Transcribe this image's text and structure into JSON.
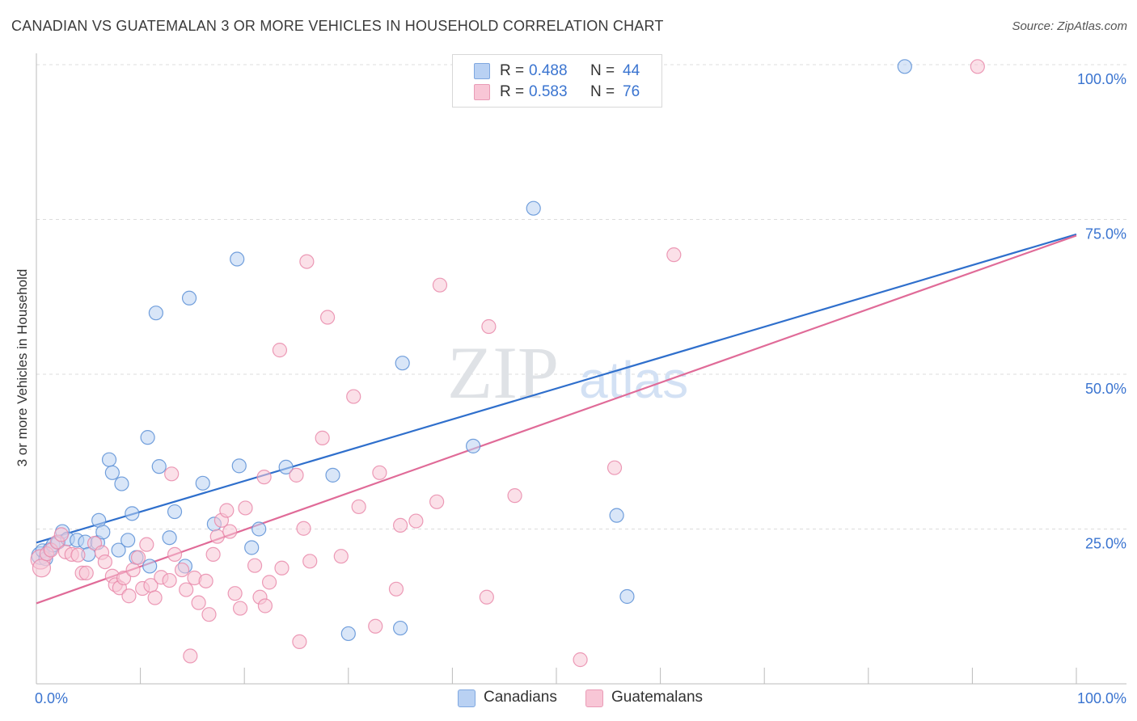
{
  "title": "CANADIAN VS GUATEMALAN 3 OR MORE VEHICLES IN HOUSEHOLD CORRELATION CHART",
  "source": "Source: ZipAtlas.com",
  "watermark": {
    "zip": "ZIP",
    "atlas": "atlas"
  },
  "legend": {
    "rows": [
      {
        "r_label": "R =",
        "r_value": "0.488",
        "n_label": "N =",
        "n_value": "44"
      },
      {
        "r_label": "R =",
        "r_value": "0.583",
        "n_label": "N =",
        "n_value": "76"
      }
    ]
  },
  "bottom_legend": {
    "canadians": "Canadians",
    "guatemalans": "Guatemalans"
  },
  "chart_data": {
    "type": "scatter",
    "title": "CANADIAN VS GUATEMALAN 3 OR MORE VEHICLES IN HOUSEHOLD CORRELATION CHART",
    "xlabel": "",
    "ylabel": "3 or more Vehicles in Household",
    "xlim": [
      0,
      100
    ],
    "ylim": [
      0,
      105
    ],
    "x_tick_labels": [
      "0.0%",
      "100.0%"
    ],
    "y_ticks": [
      25,
      50,
      75,
      100
    ],
    "y_tick_labels": [
      "25.0%",
      "50.0%",
      "75.0%",
      "100.0%"
    ],
    "grid": true,
    "legend_position": "top-center",
    "series": [
      {
        "name": "Canadians",
        "color": "#5b8fd6",
        "fill": "#b9d1f3",
        "line_color": "#2f6fcc",
        "R": 0.488,
        "N": 44,
        "trend": {
          "x": [
            0,
            100
          ],
          "y": [
            22.8,
            72.6
          ]
        },
        "points": [
          {
            "x": 0.4,
            "y": 20.7,
            "s": 11
          },
          {
            "x": 0.6,
            "y": 21.5
          },
          {
            "x": 0.9,
            "y": 20.2
          },
          {
            "x": 1.3,
            "y": 21.7
          },
          {
            "x": 1.6,
            "y": 22.4
          },
          {
            "x": 2.1,
            "y": 22.9
          },
          {
            "x": 2.5,
            "y": 24.6
          },
          {
            "x": 3.0,
            "y": 23.4
          },
          {
            "x": 3.9,
            "y": 23.2
          },
          {
            "x": 4.7,
            "y": 22.9
          },
          {
            "x": 5.0,
            "y": 20.9
          },
          {
            "x": 5.9,
            "y": 22.8
          },
          {
            "x": 6.0,
            "y": 26.4
          },
          {
            "x": 6.4,
            "y": 24.5
          },
          {
            "x": 7.0,
            "y": 36.2
          },
          {
            "x": 7.3,
            "y": 34.1
          },
          {
            "x": 7.9,
            "y": 21.6
          },
          {
            "x": 8.2,
            "y": 32.3
          },
          {
            "x": 8.8,
            "y": 23.2
          },
          {
            "x": 9.2,
            "y": 27.5
          },
          {
            "x": 9.6,
            "y": 20.4
          },
          {
            "x": 10.7,
            "y": 39.8
          },
          {
            "x": 10.9,
            "y": 19.0
          },
          {
            "x": 11.5,
            "y": 59.9
          },
          {
            "x": 11.8,
            "y": 35.1
          },
          {
            "x": 12.8,
            "y": 23.6
          },
          {
            "x": 13.3,
            "y": 27.8
          },
          {
            "x": 14.3,
            "y": 19.0
          },
          {
            "x": 14.7,
            "y": 62.3
          },
          {
            "x": 16.0,
            "y": 32.4
          },
          {
            "x": 17.1,
            "y": 25.8
          },
          {
            "x": 19.3,
            "y": 68.6
          },
          {
            "x": 19.5,
            "y": 35.2
          },
          {
            "x": 20.7,
            "y": 22.0
          },
          {
            "x": 21.4,
            "y": 25.0
          },
          {
            "x": 24.0,
            "y": 35.0
          },
          {
            "x": 28.5,
            "y": 33.7
          },
          {
            "x": 30.0,
            "y": 8.1
          },
          {
            "x": 35.0,
            "y": 9.0
          },
          {
            "x": 35.2,
            "y": 51.8
          },
          {
            "x": 42.0,
            "y": 38.4
          },
          {
            "x": 47.8,
            "y": 76.8
          },
          {
            "x": 55.8,
            "y": 27.2
          },
          {
            "x": 56.8,
            "y": 14.1
          },
          {
            "x": 83.5,
            "y": 99.7
          }
        ]
      },
      {
        "name": "Guatemalans",
        "color": "#e98aaa",
        "fill": "#f8c6d6",
        "line_color": "#e06b98",
        "R": 0.583,
        "N": 76,
        "trend": {
          "x": [
            0,
            100
          ],
          "y": [
            13.0,
            72.4
          ]
        },
        "points": [
          {
            "x": 0.4,
            "y": 20.1,
            "s": 12
          },
          {
            "x": 0.5,
            "y": 18.7,
            "s": 11
          },
          {
            "x": 1.0,
            "y": 21.0
          },
          {
            "x": 1.4,
            "y": 21.6
          },
          {
            "x": 2.0,
            "y": 22.9
          },
          {
            "x": 2.4,
            "y": 24.1
          },
          {
            "x": 2.8,
            "y": 21.3
          },
          {
            "x": 3.4,
            "y": 20.9
          },
          {
            "x": 4.0,
            "y": 20.8
          },
          {
            "x": 4.4,
            "y": 17.9
          },
          {
            "x": 4.8,
            "y": 17.9
          },
          {
            "x": 5.6,
            "y": 22.7
          },
          {
            "x": 6.3,
            "y": 21.2
          },
          {
            "x": 6.6,
            "y": 19.7
          },
          {
            "x": 7.3,
            "y": 17.4
          },
          {
            "x": 7.6,
            "y": 16.0
          },
          {
            "x": 8.0,
            "y": 15.5
          },
          {
            "x": 8.4,
            "y": 17.1
          },
          {
            "x": 8.9,
            "y": 14.2
          },
          {
            "x": 9.3,
            "y": 18.4
          },
          {
            "x": 9.8,
            "y": 20.4
          },
          {
            "x": 10.2,
            "y": 15.4
          },
          {
            "x": 10.6,
            "y": 22.5
          },
          {
            "x": 11.0,
            "y": 15.9
          },
          {
            "x": 11.4,
            "y": 13.9
          },
          {
            "x": 12.0,
            "y": 17.2
          },
          {
            "x": 12.8,
            "y": 16.7
          },
          {
            "x": 13.0,
            "y": 33.9
          },
          {
            "x": 13.3,
            "y": 20.9
          },
          {
            "x": 14.0,
            "y": 18.4
          },
          {
            "x": 14.4,
            "y": 15.2
          },
          {
            "x": 14.8,
            "y": 4.5
          },
          {
            "x": 15.2,
            "y": 17.1
          },
          {
            "x": 15.6,
            "y": 13.1
          },
          {
            "x": 16.3,
            "y": 16.6
          },
          {
            "x": 16.6,
            "y": 11.2
          },
          {
            "x": 17.0,
            "y": 20.9
          },
          {
            "x": 17.4,
            "y": 23.8
          },
          {
            "x": 17.8,
            "y": 26.4
          },
          {
            "x": 18.3,
            "y": 28.0
          },
          {
            "x": 18.6,
            "y": 24.6
          },
          {
            "x": 19.1,
            "y": 14.6
          },
          {
            "x": 19.6,
            "y": 12.2
          },
          {
            "x": 20.1,
            "y": 28.4
          },
          {
            "x": 21.0,
            "y": 19.1
          },
          {
            "x": 21.5,
            "y": 14.0
          },
          {
            "x": 21.9,
            "y": 33.4
          },
          {
            "x": 22.0,
            "y": 12.6
          },
          {
            "x": 22.4,
            "y": 16.4
          },
          {
            "x": 23.4,
            "y": 53.9
          },
          {
            "x": 23.6,
            "y": 18.7
          },
          {
            "x": 25.0,
            "y": 33.7
          },
          {
            "x": 25.3,
            "y": 6.8
          },
          {
            "x": 25.7,
            "y": 25.1
          },
          {
            "x": 26.0,
            "y": 68.2
          },
          {
            "x": 26.3,
            "y": 19.8
          },
          {
            "x": 27.5,
            "y": 39.7
          },
          {
            "x": 28.0,
            "y": 59.2
          },
          {
            "x": 29.3,
            "y": 20.6
          },
          {
            "x": 30.5,
            "y": 46.4
          },
          {
            "x": 31.0,
            "y": 28.6
          },
          {
            "x": 32.6,
            "y": 9.3
          },
          {
            "x": 33.0,
            "y": 34.1
          },
          {
            "x": 34.6,
            "y": 15.3
          },
          {
            "x": 35.0,
            "y": 25.6
          },
          {
            "x": 36.5,
            "y": 26.3
          },
          {
            "x": 38.5,
            "y": 29.4
          },
          {
            "x": 38.8,
            "y": 64.4
          },
          {
            "x": 43.3,
            "y": 14.0
          },
          {
            "x": 43.5,
            "y": 57.7
          },
          {
            "x": 46.0,
            "y": 30.4
          },
          {
            "x": 52.3,
            "y": 3.9
          },
          {
            "x": 55.6,
            "y": 34.9
          },
          {
            "x": 61.3,
            "y": 69.3
          },
          {
            "x": 90.5,
            "y": 99.7
          }
        ]
      }
    ]
  }
}
